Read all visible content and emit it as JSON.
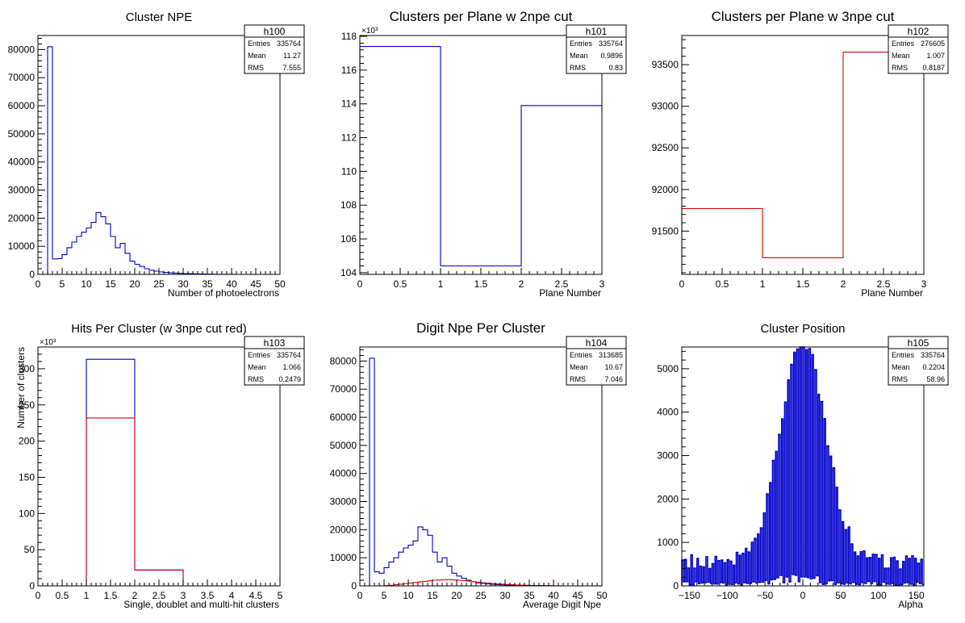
{
  "chart_data": [
    {
      "id": "h100",
      "type": "histogram",
      "title": "Cluster NPE",
      "xlabel": "Number of photoelectrons",
      "ylabel": "",
      "xlim": [
        0,
        50
      ],
      "ylim": [
        0,
        85000
      ],
      "xticks": [
        0,
        5,
        10,
        15,
        20,
        25,
        30,
        35,
        40,
        45,
        50
      ],
      "yticks": [
        0,
        10000,
        20000,
        30000,
        40000,
        50000,
        60000,
        70000,
        80000
      ],
      "yexp": "",
      "stats": {
        "name": "h100",
        "rows": [
          [
            "Entries",
            "335764"
          ],
          [
            "Mean",
            "11.27"
          ],
          [
            "RMS",
            "7.555"
          ]
        ]
      },
      "series": [
        {
          "color": "#0000cc",
          "x0": 0,
          "binw": 1,
          "values": [
            0,
            0,
            81000,
            5500,
            5600,
            7000,
            9500,
            11500,
            13500,
            15000,
            16500,
            18500,
            22000,
            20500,
            18000,
            13500,
            9500,
            11000,
            7500,
            4700,
            3600,
            2800,
            2000,
            1500,
            1150,
            900,
            700,
            550,
            450,
            370,
            300,
            250,
            200,
            160,
            120,
            90,
            60,
            40,
            30,
            20,
            15,
            10,
            0,
            0,
            0,
            0,
            0,
            0,
            0,
            0
          ]
        }
      ]
    },
    {
      "id": "h101",
      "type": "histogram",
      "title": "Clusters per Plane w 2npe cut",
      "xlabel": "Plane Number",
      "ylabel": "",
      "xlim": [
        0,
        3
      ],
      "ylim": [
        103900,
        118050
      ],
      "xticks": [
        0,
        0.5,
        1,
        1.5,
        2,
        2.5,
        3
      ],
      "yticks": [
        104000,
        106000,
        108000,
        110000,
        112000,
        114000,
        116000,
        118000
      ],
      "ytick_labels": [
        "104",
        "106",
        "108",
        "110",
        "112",
        "114",
        "116",
        "118"
      ],
      "yexp": "×10³",
      "stats": {
        "name": "h101",
        "rows": [
          [
            "Entries",
            "335764"
          ],
          [
            "Mean",
            "0.9896"
          ],
          [
            "RMS",
            "0.83"
          ]
        ]
      },
      "series": [
        {
          "color": "#0000cc",
          "x0": 0,
          "binw": 1,
          "values": [
            117400,
            104400,
            113900
          ]
        }
      ]
    },
    {
      "id": "h102",
      "type": "histogram",
      "title": "Clusters per Plane w 3npe cut",
      "xlabel": "Plane Number",
      "ylabel": "",
      "xlim": [
        0,
        3
      ],
      "ylim": [
        90980,
        93850
      ],
      "xticks": [
        0,
        0.5,
        1,
        1.5,
        2,
        2.5,
        3
      ],
      "yticks": [
        91500,
        92000,
        92500,
        93000,
        93500
      ],
      "yexp": "",
      "stats": {
        "name": "h102",
        "rows": [
          [
            "Entries",
            "276605"
          ],
          [
            "Mean",
            "1.007"
          ],
          [
            "RMS",
            "0.8187"
          ]
        ]
      },
      "series": [
        {
          "color": "#dd0000",
          "x0": 0,
          "binw": 1,
          "values": [
            91770,
            91180,
            93650
          ]
        }
      ]
    },
    {
      "id": "h103",
      "type": "histogram",
      "title": "Hits Per Cluster (w 3npe cut red)",
      "xlabel": "Single, doublet and multi-hit clusters",
      "ylabel": "Number of clusters",
      "xlim": [
        0,
        5
      ],
      "ylim": [
        0,
        330000
      ],
      "xticks": [
        0,
        0.5,
        1,
        1.5,
        2,
        2.5,
        3,
        3.5,
        4,
        4.5,
        5
      ],
      "yticks": [
        0,
        50000,
        100000,
        150000,
        200000,
        250000,
        300000
      ],
      "ytick_labels": [
        "0",
        "50",
        "100",
        "150",
        "200",
        "250",
        "300"
      ],
      "yexp": "×10³",
      "stats": {
        "name": "h103",
        "rows": [
          [
            "Entries",
            "335764"
          ],
          [
            "Mean",
            "1.066"
          ],
          [
            "RMS",
            "0.2479"
          ]
        ]
      },
      "series": [
        {
          "color": "#0000cc",
          "x0": 0,
          "binw": 1,
          "values": [
            0,
            313000,
            22000,
            0,
            0
          ]
        },
        {
          "color": "#dd0000",
          "x0": 0,
          "binw": 1,
          "values": [
            0,
            232000,
            22000,
            0,
            0
          ]
        }
      ]
    },
    {
      "id": "h104",
      "type": "histogram",
      "title": "Digit Npe Per Cluster",
      "xlabel": "Average Digit Npe",
      "ylabel": "",
      "xlim": [
        0,
        50
      ],
      "ylim": [
        0,
        85000
      ],
      "xticks": [
        0,
        5,
        10,
        15,
        20,
        25,
        30,
        35,
        40,
        45,
        50
      ],
      "yticks": [
        0,
        10000,
        20000,
        30000,
        40000,
        50000,
        60000,
        70000,
        80000
      ],
      "yexp": "",
      "stats": {
        "name": "h104",
        "rows": [
          [
            "Entries",
            "313685"
          ],
          [
            "Mean",
            "10.67"
          ],
          [
            "RMS",
            "7.046"
          ]
        ]
      },
      "series": [
        {
          "color": "#0000cc",
          "x0": 0,
          "binw": 1,
          "values": [
            0,
            0,
            81000,
            5000,
            4500,
            6500,
            8500,
            10000,
            12000,
            13500,
            14500,
            16000,
            21000,
            20000,
            18000,
            12000,
            8500,
            10000,
            7000,
            4500,
            3500,
            2700,
            2000,
            1500,
            1100,
            900,
            700,
            550,
            450,
            370,
            300,
            250,
            200,
            160,
            120,
            90,
            60,
            40,
            30,
            20,
            15,
            10,
            0,
            0,
            0,
            0,
            0,
            0,
            0,
            0
          ]
        },
        {
          "color": "#dd0000",
          "x0": 0,
          "binw": 1,
          "values": [
            0,
            0,
            0,
            0,
            0,
            100,
            200,
            400,
            600,
            800,
            1000,
            1200,
            1400,
            1600,
            1800,
            2000,
            2100,
            2200,
            2200,
            2100,
            2000,
            1900,
            1700,
            1500,
            1300,
            1100,
            950,
            800,
            700,
            600,
            500,
            400,
            330,
            280,
            230,
            180,
            140,
            110,
            80,
            60,
            40,
            20,
            0,
            0,
            0,
            0,
            0,
            0,
            0,
            0
          ]
        }
      ]
    },
    {
      "id": "h105",
      "type": "histogram",
      "title": "Cluster Position",
      "xlabel": "Alpha",
      "ylabel": "",
      "xlim": [
        -160,
        160
      ],
      "ylim": [
        0,
        5500
      ],
      "xticks": [
        -150,
        -100,
        -50,
        0,
        50,
        100,
        150
      ],
      "xtick_labels": [
        "−150",
        "−100",
        "−50",
        "0",
        "50",
        "100",
        "150"
      ],
      "yticks": [
        0,
        1000,
        2000,
        3000,
        4000,
        5000
      ],
      "yexp": "",
      "stats": {
        "name": "h105",
        "rows": [
          [
            "Entries",
            "335764"
          ],
          [
            "Mean",
            "0.2204"
          ],
          [
            "RMS",
            "58.96"
          ]
        ]
      },
      "series": [
        {
          "color": "#0000cc",
          "style": "spiky",
          "x0": -160,
          "binw": 2,
          "values": [],
          "envelope": {
            "peak": 5100,
            "sigma": 30,
            "base": 550
          }
        }
      ]
    }
  ]
}
